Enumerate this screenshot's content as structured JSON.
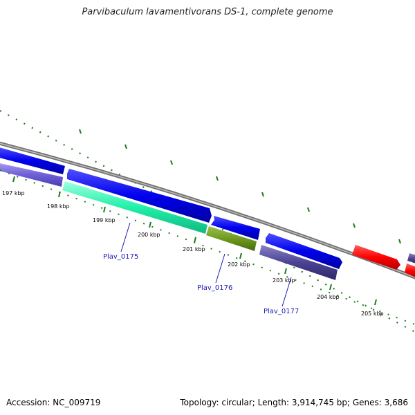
{
  "title": "Parvibaculum lavamentivorans DS-1, complete genome",
  "footer": {
    "accession": "Accession: NC_009719",
    "summary": "Topology: circular; Length: 3,914,745 bp; Genes: 3,686"
  },
  "colors": {
    "backbone": "#808080",
    "tick": "#1d7a1d",
    "gene_label": "#1a1ab4",
    "forward_cds": "#0000ee",
    "forward_rrna": "#ff1010"
  },
  "scale_labels": [
    "197 kbp",
    "198 kbp",
    "199 kbp",
    "200 kbp",
    "201 kbp",
    "202 kbp",
    "203 kbp",
    "204 kbp",
    "205 kbp"
  ],
  "gene_labels": [
    {
      "text": "Plav_0175"
    },
    {
      "text": "Plav_0176"
    },
    {
      "text": "Plav_0177"
    }
  ]
}
